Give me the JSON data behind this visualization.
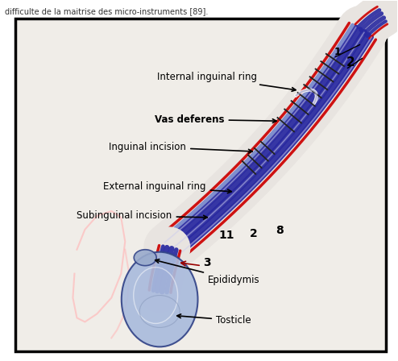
{
  "bg_color": "#ffffff",
  "border_color": "#000000",
  "fig_width": 4.94,
  "fig_height": 4.48,
  "top_text": "difficulte de la maitrise des micro-instruments [89].",
  "labels": {
    "internal_inguinal_ring": "Internal inguinal ring",
    "vas_deferens": "Vas deferens",
    "inguinal_incision": "Inguinal incision",
    "external_inguinal_ring": "External inguinal ring",
    "subinguinal_incision": "Subinguinal incision",
    "epididymis": "Epididymis",
    "testicle": "Tosticle",
    "num1": "1",
    "num2_top": "2",
    "num11": "11",
    "num2_mid": "2",
    "num8": "8",
    "num3": "3"
  },
  "cord_blue_color": "#2828a0",
  "cord_red_color": "#cc0000",
  "cord_purple_color": "#6644aa",
  "cord_light_blue": "#7788cc",
  "testicle_color": "#aabbdd",
  "testicle_outline": "#334488",
  "skin_pink": "#ffbbbb"
}
